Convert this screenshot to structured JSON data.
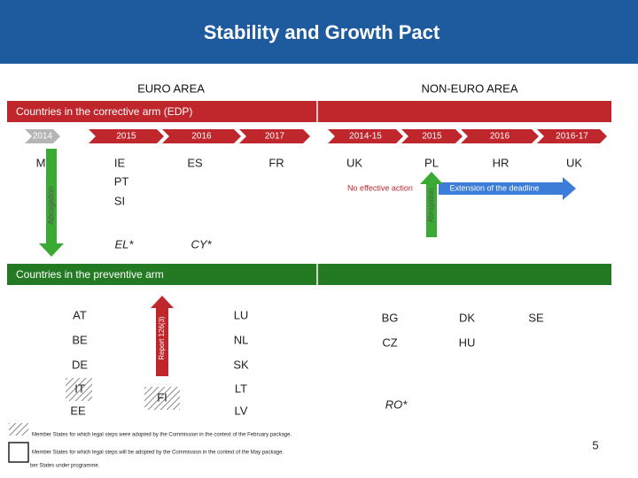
{
  "header": {
    "title": "Stability and Growth Pact"
  },
  "areas": {
    "euro": "EURO AREA",
    "non_euro": "NON-EURO AREA"
  },
  "corrective": {
    "title": "Countries in the corrective arm (EDP)",
    "euro_years": [
      "2014",
      "2015",
      "2016",
      "2017"
    ],
    "non_euro_years": [
      "2014-15",
      "2015",
      "2016",
      "2016-17"
    ],
    "euro_countries": [
      "MT",
      "IE",
      "ES",
      "FR",
      "PT",
      "SI",
      "EL*",
      "CY*"
    ],
    "non_euro_countries": [
      "UK",
      "PL",
      "HR",
      "UK"
    ],
    "euro_abrogation": "Abrogation",
    "no_effective_action": "No effective action",
    "non_euro_abrogation": "Abrogation",
    "extension": "Extension of the deadline"
  },
  "preventive": {
    "title": "Countries in the preventive arm",
    "report": "Report 126(3)",
    "euro_countries": [
      "AT",
      "BE",
      "DE",
      "IT",
      "EE",
      "FI",
      "LU",
      "NL",
      "SK",
      "LT",
      "LV"
    ],
    "non_euro_countries": [
      "BG",
      "DK",
      "SE",
      "CZ",
      "HU",
      "RO*"
    ]
  },
  "legend": [
    "Member States for which legal steps were adopted by the Commission in the context of the February package.",
    "Member States for which legal steps will be adopted by the Commission in the context of the May package.",
    "ber States under programme."
  ],
  "page_number": "5"
}
